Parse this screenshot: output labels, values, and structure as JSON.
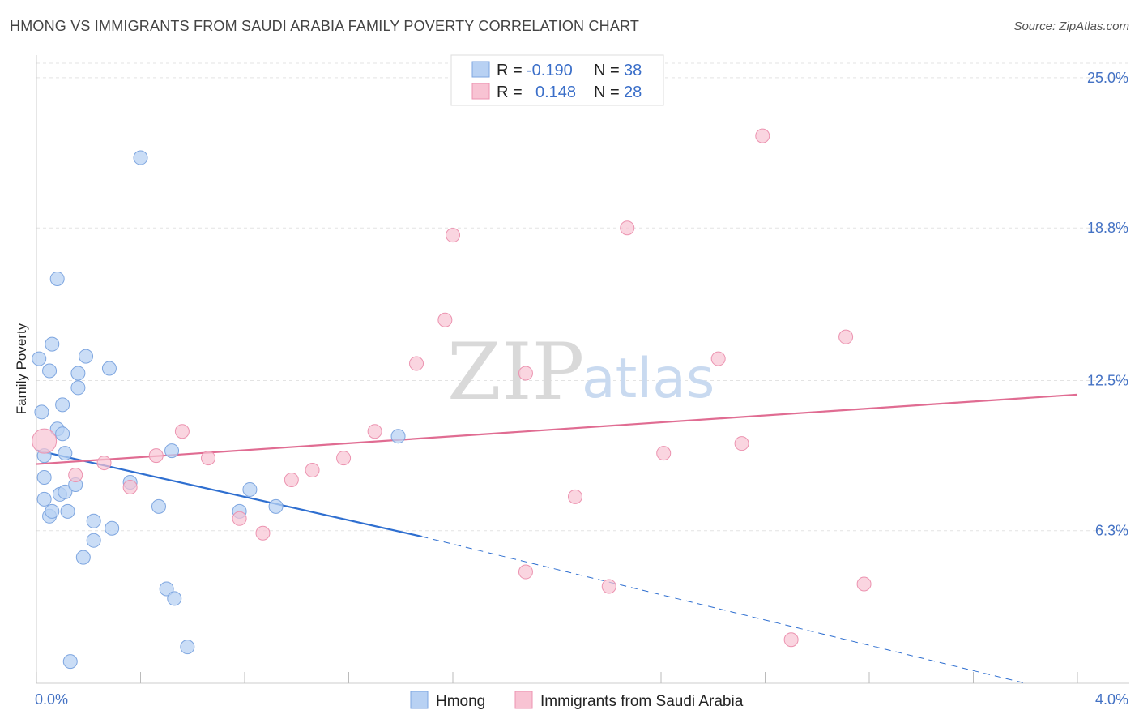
{
  "header": {
    "title": "HMONG VS IMMIGRANTS FROM SAUDI ARABIA FAMILY POVERTY CORRELATION CHART",
    "source": "Source: ZipAtlas.com"
  },
  "watermark": {
    "zip": "ZIP",
    "atlas": "atlas"
  },
  "colors": {
    "hmong_fill": "#b8d1f3",
    "hmong_stroke": "#7ea6e0",
    "hmong_line": "#2f6fd0",
    "saudi_fill": "#f8c3d3",
    "saudi_stroke": "#ec93b0",
    "saudi_line": "#e06c92",
    "grid": "#e3e3e3",
    "axis_text": "#4472c4"
  },
  "chart_data": {
    "type": "scatter",
    "title": "HMONG VS IMMIGRANTS FROM SAUDI ARABIA FAMILY POVERTY CORRELATION CHART",
    "xlabel": "",
    "ylabel": "Family Poverty",
    "xlim": [
      0,
      4.0
    ],
    "ylim": [
      0,
      25.6
    ],
    "x_tick_labels": [
      "0.0%",
      "4.0%"
    ],
    "y_ticks": [
      6.3,
      12.5,
      18.8,
      25.0
    ],
    "y_tick_labels": [
      "6.3%",
      "12.5%",
      "18.8%",
      "25.0%"
    ],
    "legend": [
      {
        "r_label": "R =",
        "r_value": "-0.190",
        "n_label": "N =",
        "n_value": "38"
      },
      {
        "r_label": "R =",
        "r_value": "0.148",
        "n_label": "N =",
        "n_value": "28"
      }
    ],
    "series": [
      {
        "name": "Hmong",
        "points": [
          [
            0.01,
            13.4
          ],
          [
            0.02,
            11.2
          ],
          [
            0.03,
            9.4
          ],
          [
            0.03,
            8.5
          ],
          [
            0.03,
            7.6
          ],
          [
            0.05,
            12.9
          ],
          [
            0.05,
            6.9
          ],
          [
            0.06,
            14.0
          ],
          [
            0.06,
            7.1
          ],
          [
            0.08,
            16.7
          ],
          [
            0.08,
            10.5
          ],
          [
            0.09,
            7.8
          ],
          [
            0.1,
            11.5
          ],
          [
            0.1,
            10.3
          ],
          [
            0.11,
            9.5
          ],
          [
            0.11,
            7.9
          ],
          [
            0.12,
            7.1
          ],
          [
            0.13,
            0.9
          ],
          [
            0.15,
            8.2
          ],
          [
            0.16,
            12.2
          ],
          [
            0.16,
            12.8
          ],
          [
            0.18,
            5.2
          ],
          [
            0.19,
            13.5
          ],
          [
            0.22,
            6.7
          ],
          [
            0.22,
            5.9
          ],
          [
            0.28,
            13.0
          ],
          [
            0.29,
            6.4
          ],
          [
            0.36,
            8.3
          ],
          [
            0.4,
            21.7
          ],
          [
            0.47,
            7.3
          ],
          [
            0.5,
            3.9
          ],
          [
            0.52,
            9.6
          ],
          [
            0.53,
            3.5
          ],
          [
            0.58,
            1.5
          ],
          [
            0.78,
            7.1
          ],
          [
            0.82,
            8.0
          ],
          [
            0.92,
            7.3
          ],
          [
            1.39,
            10.2
          ]
        ],
        "trend": {
          "x": [
            0.0,
            1.48
          ],
          "y": [
            9.62,
            6.06
          ]
        },
        "trend_extension": {
          "x": [
            1.48,
            3.8
          ],
          "y": [
            6.06,
            0.0
          ]
        }
      },
      {
        "name": "Immigrants from Saudi Arabia",
        "points": [
          [
            0.03,
            10.0
          ],
          [
            0.15,
            8.6
          ],
          [
            0.26,
            9.1
          ],
          [
            0.36,
            8.1
          ],
          [
            0.46,
            9.4
          ],
          [
            0.56,
            10.4
          ],
          [
            0.66,
            9.3
          ],
          [
            0.78,
            6.8
          ],
          [
            0.87,
            6.2
          ],
          [
            0.98,
            8.4
          ],
          [
            1.06,
            8.8
          ],
          [
            1.18,
            9.3
          ],
          [
            1.3,
            10.4
          ],
          [
            1.46,
            13.2
          ],
          [
            1.57,
            15.0
          ],
          [
            1.6,
            18.5
          ],
          [
            1.88,
            4.6
          ],
          [
            1.88,
            12.8
          ],
          [
            2.07,
            7.7
          ],
          [
            2.2,
            4.0
          ],
          [
            2.27,
            18.8
          ],
          [
            2.41,
            9.5
          ],
          [
            2.62,
            13.4
          ],
          [
            2.71,
            9.9
          ],
          [
            2.79,
            22.6
          ],
          [
            2.9,
            1.8
          ],
          [
            3.11,
            14.3
          ],
          [
            3.18,
            4.1
          ]
        ],
        "trend": {
          "x": [
            0.0,
            4.0
          ],
          "y": [
            9.05,
            11.92
          ]
        }
      }
    ]
  }
}
